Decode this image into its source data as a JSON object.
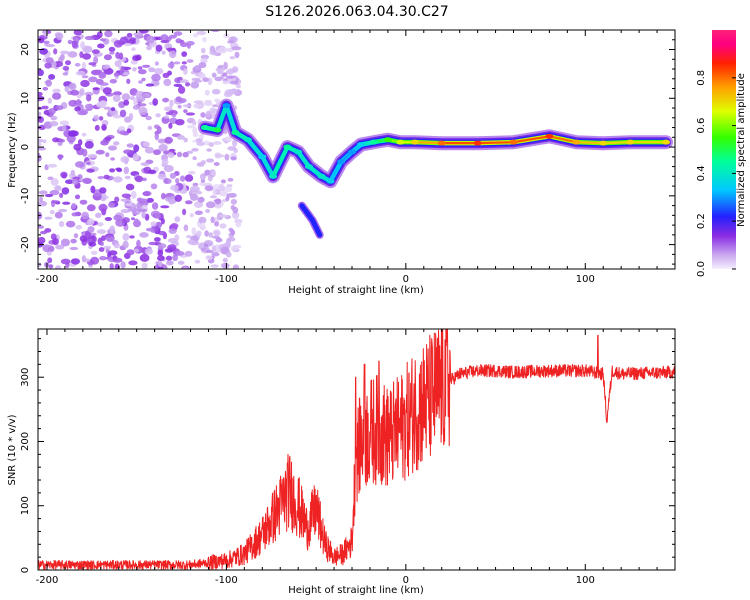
{
  "title": "S126.2026.063.04.30.C27",
  "colors": {
    "snr_line": "#ee2222"
  },
  "chart_data": [
    {
      "type": "heatmap",
      "name": "spectrogram",
      "xlabel": "Height of straight line (km)",
      "ylabel": "Frequency (Hz)",
      "xlim": [
        -205,
        150
      ],
      "ylim": [
        -25,
        24
      ],
      "xticks": [
        -200,
        -100,
        0,
        100
      ],
      "yticks": [
        -20,
        -10,
        0,
        10,
        20
      ],
      "xtick_labels": [
        "-200",
        "-100",
        "0",
        "100"
      ],
      "ytick_labels": [
        "-20",
        "-10",
        "0",
        "10",
        "20"
      ],
      "colorbar": {
        "label": "Normalized spectral amplitude",
        "range": [
          0,
          1
        ],
        "ticks": [
          0.0,
          0.2,
          0.4,
          0.6,
          0.8
        ],
        "tick_labels": [
          "0.0",
          "0.2",
          "0.4",
          "0.6",
          "0.8"
        ]
      },
      "ridge": [
        {
          "x": -112,
          "y": 4,
          "a": 0.45
        },
        {
          "x": -105,
          "y": 3.5,
          "a": 0.5
        },
        {
          "x": -100,
          "y": 8.5,
          "a": 0.3
        },
        {
          "x": -95,
          "y": 3,
          "a": 0.45
        },
        {
          "x": -88,
          "y": 1.5,
          "a": 0.4
        },
        {
          "x": -80,
          "y": -2,
          "a": 0.35
        },
        {
          "x": -74,
          "y": -6,
          "a": 0.4
        },
        {
          "x": -66,
          "y": 0,
          "a": 0.45
        },
        {
          "x": -60,
          "y": -1,
          "a": 0.4
        },
        {
          "x": -54,
          "y": -4,
          "a": 0.4
        },
        {
          "x": -47,
          "y": -6,
          "a": 0.4
        },
        {
          "x": -42,
          "y": -7,
          "a": 0.35
        },
        {
          "x": -36,
          "y": -3,
          "a": 0.3
        },
        {
          "x": -30,
          "y": -1,
          "a": 0.3
        },
        {
          "x": -25,
          "y": 0.5,
          "a": 0.35
        },
        {
          "x": -18,
          "y": 1,
          "a": 0.45
        },
        {
          "x": -10,
          "y": 1.5,
          "a": 0.55
        },
        {
          "x": -3,
          "y": 1,
          "a": 0.65
        },
        {
          "x": 5,
          "y": 1,
          "a": 0.7
        },
        {
          "x": 20,
          "y": 0.8,
          "a": 0.8
        },
        {
          "x": 40,
          "y": 0.8,
          "a": 0.85
        },
        {
          "x": 60,
          "y": 1,
          "a": 0.8
        },
        {
          "x": 80,
          "y": 2.2,
          "a": 0.85
        },
        {
          "x": 95,
          "y": 1,
          "a": 0.75
        },
        {
          "x": 110,
          "y": 0.8,
          "a": 0.7
        },
        {
          "x": 125,
          "y": 1,
          "a": 0.7
        },
        {
          "x": 145,
          "y": 1,
          "a": 0.7
        }
      ],
      "branch": [
        {
          "x": -58,
          "y": -12,
          "a": 0.25
        },
        {
          "x": -52,
          "y": -15,
          "a": 0.25
        },
        {
          "x": -48,
          "y": -18,
          "a": 0.25
        }
      ],
      "noise_region": {
        "x_from": -205,
        "x_to": -93,
        "density_note": "diffuse low-amplitude purple noise"
      }
    },
    {
      "type": "line",
      "name": "snr",
      "xlabel": "Height of straight line (km)",
      "ylabel": "SNR (10 * v/v)",
      "xlim": [
        -205,
        150
      ],
      "ylim": [
        0,
        375
      ],
      "xticks": [
        -200,
        -100,
        0,
        100
      ],
      "yticks": [
        0,
        100,
        200,
        300
      ],
      "xtick_labels": [
        "-200",
        "-100",
        "0",
        "100"
      ],
      "ytick_labels": [
        "0",
        "100",
        "200",
        "300"
      ],
      "series": [
        {
          "name": "SNR",
          "x": [
            -205,
            -120,
            -100,
            -90,
            -80,
            -70,
            -65,
            -60,
            -55,
            -50,
            -45,
            -40,
            -35,
            -30,
            -28,
            -25,
            -20,
            -15,
            -10,
            -5,
            0,
            5,
            10,
            15,
            20,
            25,
            30,
            40,
            50,
            60,
            80,
            100,
            110,
            112,
            115,
            120,
            150
          ],
          "y": [
            8,
            8,
            15,
            25,
            55,
            100,
            125,
            100,
            65,
            95,
            40,
            20,
            25,
            45,
            170,
            200,
            215,
            220,
            205,
            215,
            230,
            250,
            260,
            270,
            285,
            295,
            305,
            310,
            310,
            308,
            310,
            310,
            305,
            235,
            310,
            305,
            308
          ]
        }
      ],
      "spikes": [
        {
          "x": -28,
          "y": 300
        },
        {
          "x": -23,
          "y": 320
        },
        {
          "x": -15,
          "y": 325
        },
        {
          "x": -10,
          "y": 270
        },
        {
          "x": 23,
          "y": 355
        },
        {
          "x": 107,
          "y": 365
        },
        {
          "x": 112,
          "y": 230
        }
      ]
    }
  ]
}
